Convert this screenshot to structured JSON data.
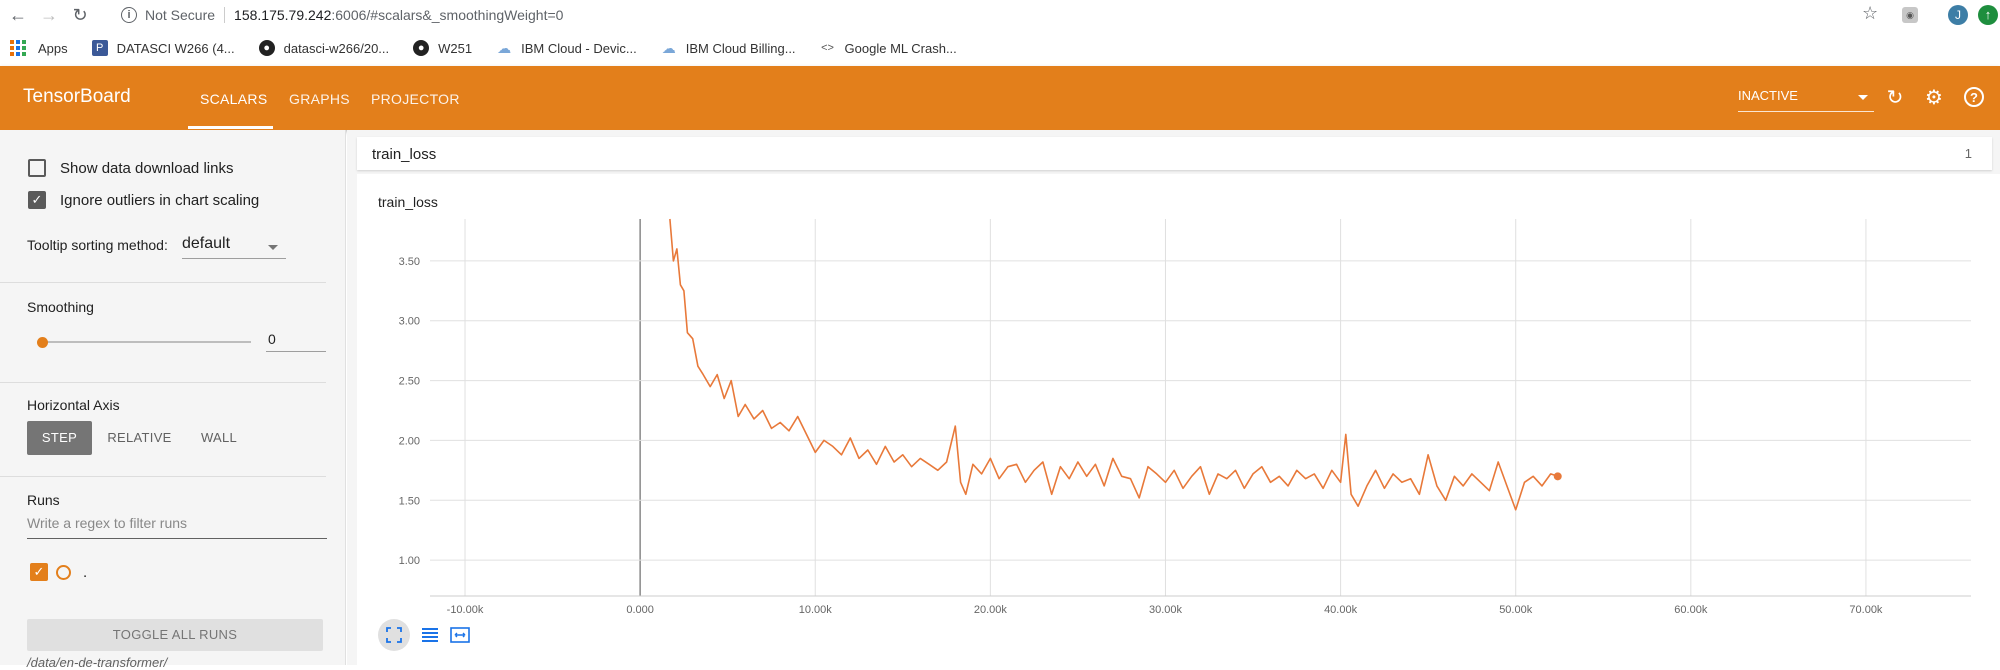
{
  "browser": {
    "not_secure": "Not Secure",
    "url_host": "158.175.79.242",
    "url_rest": ":6006/#scalars&_smoothingWeight=0",
    "profile_initial": "J"
  },
  "bookmarks": [
    {
      "label": "Apps",
      "icon": "apps-grid-icon"
    },
    {
      "label": "DATASCI W266 (4...",
      "icon": "bookmark-p-icon"
    },
    {
      "label": "datasci-w266/20...",
      "icon": "github-icon"
    },
    {
      "label": "W251",
      "icon": "github-icon"
    },
    {
      "label": "IBM Cloud - Devic...",
      "icon": "cloud-icon"
    },
    {
      "label": "IBM Cloud Billing...",
      "icon": "cloud-icon"
    },
    {
      "label": "Google ML Crash...",
      "icon": "code-icon"
    }
  ],
  "header": {
    "title": "TensorBoard",
    "tabs": [
      "SCALARS",
      "GRAPHS",
      "PROJECTOR"
    ],
    "status": "INACTIVE",
    "accent": "#e37f1b"
  },
  "sidebar": {
    "show_download": "Show data download links",
    "ignore_outliers": "Ignore outliers in chart scaling",
    "tooltip_label": "Tooltip sorting method:",
    "tooltip_value": "default",
    "smoothing_label": "Smoothing",
    "smoothing_value": "0",
    "haxis_label": "Horizontal Axis",
    "haxis_options": [
      "STEP",
      "RELATIVE",
      "WALL"
    ],
    "runs_label": "Runs",
    "runs_placeholder": "Write a regex to filter runs",
    "run_name": ".",
    "toggle_all": "TOGGLE ALL RUNS",
    "data_path": "/data/en-de-transformer/"
  },
  "main": {
    "tag_name": "train_loss",
    "tag_count": "1"
  },
  "chart_data": {
    "type": "line",
    "title": "train_loss",
    "xlim": [
      -12000,
      76000
    ],
    "ylim": [
      0.7,
      3.85
    ],
    "x_ticks": [
      -10000,
      0,
      10000,
      20000,
      30000,
      40000,
      50000,
      60000,
      70000
    ],
    "x_tick_labels": [
      "-10.00k",
      "0.000",
      "10.00k",
      "20.00k",
      "30.00k",
      "40.00k",
      "50.00k",
      "60.00k",
      "70.00k"
    ],
    "y_ticks": [
      1.0,
      1.5,
      2.0,
      2.5,
      3.0,
      3.5
    ],
    "y_tick_labels": [
      "1.00",
      "1.50",
      "2.00",
      "2.50",
      "3.00",
      "3.50"
    ],
    "grid": true,
    "series": [
      {
        "color": "#e8793a",
        "x": [
          1700,
          1900,
          2100,
          2300,
          2500,
          2700,
          3000,
          3300,
          3600,
          4000,
          4400,
          4800,
          5200,
          5600,
          6000,
          6500,
          7000,
          7500,
          8000,
          8500,
          9000,
          9500,
          10000,
          10500,
          11000,
          11500,
          12000,
          12500,
          13000,
          13500,
          14000,
          14500,
          15000,
          15500,
          16000,
          16500,
          17000,
          17500,
          18000,
          18300,
          18600,
          19000,
          19500,
          20000,
          20500,
          21000,
          21500,
          22000,
          22500,
          23000,
          23500,
          24000,
          24500,
          25000,
          25500,
          26000,
          26500,
          27000,
          27500,
          28000,
          28500,
          29000,
          29500,
          30000,
          30500,
          31000,
          31500,
          32000,
          32500,
          33000,
          33500,
          34000,
          34500,
          35000,
          35500,
          36000,
          36500,
          37000,
          37500,
          38000,
          38500,
          39000,
          39500,
          40000,
          40300,
          40600,
          41000,
          41500,
          42000,
          42500,
          43000,
          43500,
          44000,
          44500,
          45000,
          45500,
          46000,
          46500,
          47000,
          47500,
          48000,
          48500,
          49000,
          49500,
          50000,
          50500,
          51000,
          51500,
          52000,
          52400
        ],
        "y": [
          3.85,
          3.5,
          3.6,
          3.3,
          3.25,
          2.9,
          2.85,
          2.62,
          2.55,
          2.45,
          2.55,
          2.35,
          2.5,
          2.2,
          2.3,
          2.18,
          2.25,
          2.1,
          2.15,
          2.08,
          2.2,
          2.05,
          1.9,
          2.0,
          1.95,
          1.88,
          2.02,
          1.85,
          1.92,
          1.8,
          1.95,
          1.82,
          1.88,
          1.78,
          1.85,
          1.8,
          1.75,
          1.82,
          2.12,
          1.65,
          1.55,
          1.8,
          1.72,
          1.85,
          1.68,
          1.78,
          1.8,
          1.65,
          1.75,
          1.82,
          1.55,
          1.78,
          1.68,
          1.82,
          1.7,
          1.8,
          1.62,
          1.85,
          1.7,
          1.68,
          1.52,
          1.78,
          1.72,
          1.65,
          1.75,
          1.6,
          1.7,
          1.78,
          1.55,
          1.72,
          1.68,
          1.75,
          1.6,
          1.72,
          1.78,
          1.65,
          1.7,
          1.62,
          1.75,
          1.68,
          1.72,
          1.6,
          1.75,
          1.65,
          2.05,
          1.55,
          1.45,
          1.62,
          1.75,
          1.6,
          1.72,
          1.65,
          1.68,
          1.55,
          1.88,
          1.62,
          1.5,
          1.7,
          1.62,
          1.72,
          1.65,
          1.58,
          1.82,
          1.62,
          1.42,
          1.65,
          1.7,
          1.62,
          1.72,
          1.7
        ]
      }
    ]
  }
}
